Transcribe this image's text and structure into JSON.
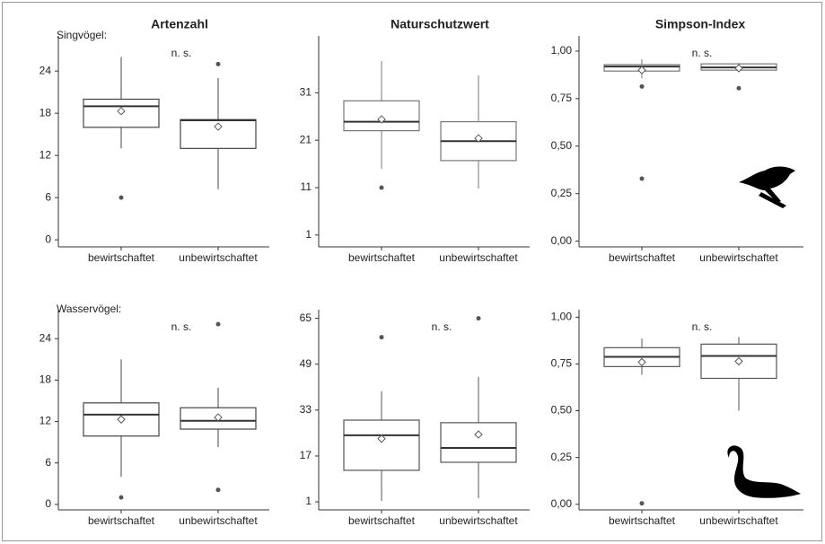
{
  "chart_data": [
    {
      "type": "box",
      "title": "Artenzahl",
      "row_label": "Singvögel:",
      "annotation": "n. s.",
      "categories": [
        "bewirtschaftet",
        "unbewirtschaftet"
      ],
      "color": "#444",
      "boxes": [
        {
          "whislo": 13,
          "q1": 16,
          "median": 19,
          "q3": 20,
          "whishi": 26,
          "mean": 18.3,
          "fliers": [
            6
          ]
        },
        {
          "whislo": 7.2,
          "q1": 13,
          "median": 17,
          "q3": 17.1,
          "whishi": 23,
          "mean": 16.1,
          "fliers": [
            25
          ]
        }
      ],
      "ylim": [
        -1,
        29
      ],
      "yticks": [
        0,
        6,
        12,
        18,
        24
      ]
    },
    {
      "type": "box",
      "title": "Naturschutzwert",
      "categories": [
        "bewirtschaftet",
        "unbewirtschaftet"
      ],
      "color": "#777",
      "boxes": [
        {
          "whislo": 14.9,
          "q1": 23,
          "median": 24.9,
          "q3": 29.3,
          "whishi": 37.7,
          "mean": 25.4,
          "fliers": [
            11
          ]
        },
        {
          "whislo": 10.8,
          "q1": 16.7,
          "median": 20.8,
          "q3": 24.9,
          "whishi": 34.7,
          "mean": 21.4,
          "fliers": []
        }
      ],
      "ylim": [
        -1.5,
        43
      ],
      "yticks": [
        1,
        11,
        21,
        31
      ]
    },
    {
      "type": "box",
      "title": "Simpson-Index",
      "annotation": "n. s.",
      "categories": [
        "bewirtschaftet",
        "unbewirtschaftet"
      ],
      "color": "#777",
      "boxes": [
        {
          "whislo": 0.857,
          "q1": 0.895,
          "median": 0.919,
          "q3": 0.929,
          "whishi": 0.957,
          "mean": 0.9,
          "fliers": [
            0.814,
            0.329
          ]
        },
        {
          "whislo": 0.895,
          "q1": 0.9,
          "median": 0.914,
          "q3": 0.933,
          "whishi": 0.938,
          "mean": 0.91,
          "fliers": [
            0.805
          ]
        }
      ],
      "ylim": [
        -0.03,
        1.08
      ],
      "yticks": [
        {
          "value": 0,
          "label": "0,00"
        },
        {
          "value": 0.25,
          "label": "0,25"
        },
        {
          "value": 0.5,
          "label": "0,50"
        },
        {
          "value": 0.75,
          "label": "0,75"
        },
        {
          "value": 1,
          "label": "1,00"
        }
      ]
    },
    {
      "type": "box",
      "row_label": "Wasservögel:",
      "annotation": "n. s.",
      "categories": [
        "bewirtschaftet",
        "unbewirtschaftet"
      ],
      "color": "#444",
      "boxes": [
        {
          "whislo": 4,
          "q1": 9.9,
          "median": 13,
          "q3": 14.7,
          "whishi": 21,
          "mean": 12.3,
          "fliers": [
            1
          ]
        },
        {
          "whislo": 8.3,
          "q1": 10.9,
          "median": 12.1,
          "q3": 14,
          "whishi": 16.9,
          "mean": 12.6,
          "fliers": [
            26.1,
            2.1
          ]
        }
      ],
      "ylim": [
        -0.8,
        28.2
      ],
      "yticks": [
        0,
        6,
        12,
        18,
        24
      ]
    },
    {
      "type": "box",
      "annotation": "n. s.",
      "categories": [
        "bewirtschaftet",
        "unbewirtschaftet"
      ],
      "color": "#555",
      "boxes": [
        {
          "whislo": 1.3,
          "q1": 12,
          "median": 24.2,
          "q3": 29.5,
          "whishi": 39.6,
          "mean": 23,
          "fliers": [
            58.4
          ]
        },
        {
          "whislo": 2.3,
          "q1": 14.8,
          "median": 19.8,
          "q3": 28.6,
          "whishi": 44.6,
          "mean": 24.5,
          "fliers": [
            65
          ]
        }
      ],
      "ylim": [
        -1.8,
        68
      ],
      "yticks": [
        1,
        17,
        33,
        49,
        65
      ]
    },
    {
      "type": "box",
      "annotation": "n. s.",
      "categories": [
        "bewirtschaftet",
        "unbewirtschaftet"
      ],
      "color": "#555",
      "boxes": [
        {
          "whislo": 0.692,
          "q1": 0.736,
          "median": 0.788,
          "q3": 0.837,
          "whishi": 0.885,
          "mean": 0.76,
          "fliers": [
            0.005
          ]
        },
        {
          "whislo": 0.5,
          "q1": 0.673,
          "median": 0.793,
          "q3": 0.856,
          "whishi": 0.894,
          "mean": 0.764,
          "fliers": []
        }
      ],
      "ylim": [
        -0.03,
        1.04
      ],
      "yticks": [
        {
          "value": 0,
          "label": "0,00"
        },
        {
          "value": 0.25,
          "label": "0,25"
        },
        {
          "value": 0.5,
          "label": "0,50"
        },
        {
          "value": 0.75,
          "label": "0,75"
        },
        {
          "value": 1,
          "label": "1,00"
        }
      ]
    }
  ]
}
